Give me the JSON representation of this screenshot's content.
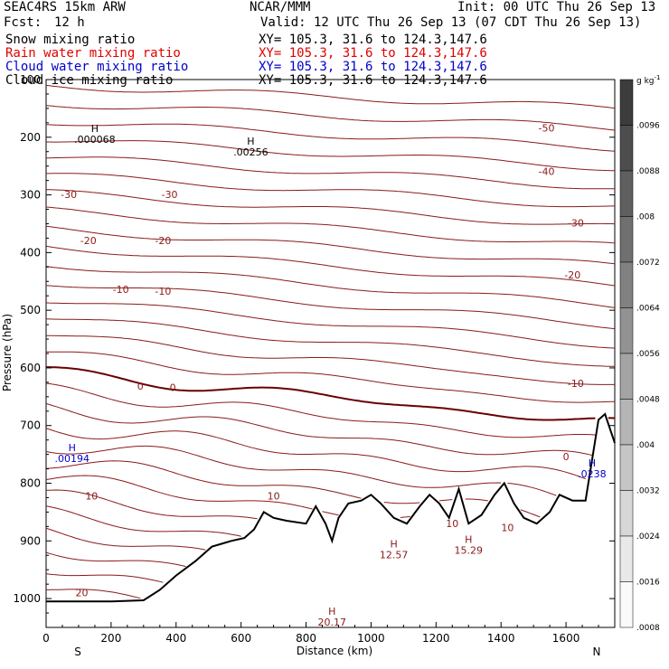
{
  "header": {
    "model": "SEAC4RS 15km ARW",
    "org": "NCAR/MMM",
    "init": "Init: 00 UTC Thu 26 Sep 13",
    "fcst_label": "Fcst:",
    "fcst_value": "12 h",
    "valid": "Valid: 12 UTC Thu 26 Sep 13 (07 CDT Thu 26 Sep 13)"
  },
  "fields": [
    {
      "name": "Snow mixing ratio",
      "xy": "XY= 105.3, 31.6 to 124.3,147.6",
      "color": "#000000"
    },
    {
      "name": "Rain water mixing ratio",
      "xy": "XY= 105.3, 31.6 to 124.3,147.6",
      "color": "#e00000"
    },
    {
      "name": "Cloud water mixing ratio",
      "xy": "XY= 105.3, 31.6 to 124.3,147.6",
      "color": "#0000cc"
    },
    {
      "name": "Cloud ice mixing ratio",
      "xy": "XY= 105.3, 31.6 to 124.3,147.6",
      "color": "#000000"
    }
  ],
  "chart_data": {
    "type": "cross-section contour",
    "xlabel": "Distance (km)",
    "ylabel": "Pressure (hPa)",
    "x_range": [
      0,
      1750
    ],
    "y_range": [
      100,
      1050
    ],
    "x_ticks": [
      0,
      200,
      400,
      600,
      800,
      1000,
      1200,
      1400,
      1600
    ],
    "y_ticks": [
      100,
      200,
      300,
      400,
      500,
      600,
      700,
      800,
      900,
      1000
    ],
    "y_tick_labels": [
      "100",
      "200",
      "300",
      "400",
      "500",
      "600",
      "700",
      "800",
      "900",
      "1000"
    ],
    "endpoints": {
      "left": "S",
      "right": "N"
    },
    "colorbar": {
      "units": "g kg",
      "units_sup": "-1",
      "labels": [
        ".0096",
        ".0088",
        ".008",
        ".0072",
        ".0064",
        ".0056",
        ".0048",
        ".004",
        ".0032",
        ".0024",
        ".0016",
        ".0008"
      ]
    },
    "temperature_contours": [
      {
        "value": -50,
        "color": "#8b1a1a"
      },
      {
        "value": -40,
        "color": "#8b1a1a"
      },
      {
        "value": -30,
        "color": "#8b1a1a"
      },
      {
        "value": -20,
        "color": "#8b1a1a"
      },
      {
        "value": -10,
        "color": "#8b1a1a"
      },
      {
        "value": 0,
        "color": "#7a0000",
        "bold": true
      },
      {
        "value": 10,
        "color": "#8b1a1a"
      },
      {
        "value": 20,
        "color": "#8b1a1a"
      }
    ],
    "contour_labels": [
      {
        "text": "-50",
        "x": 1540,
        "p": 190
      },
      {
        "text": "-40",
        "x": 1540,
        "p": 265
      },
      {
        "text": "-30",
        "x": 70,
        "p": 305
      },
      {
        "text": "-30",
        "x": 380,
        "p": 305
      },
      {
        "text": "-30",
        "x": 1630,
        "p": 355
      },
      {
        "text": "-20",
        "x": 130,
        "p": 385
      },
      {
        "text": "-20",
        "x": 360,
        "p": 385
      },
      {
        "text": "-20",
        "x": 1620,
        "p": 445
      },
      {
        "text": "-10",
        "x": 230,
        "p": 470
      },
      {
        "text": "-10",
        "x": 360,
        "p": 473
      },
      {
        "text": "-10",
        "x": 1630,
        "p": 633
      },
      {
        "text": "0",
        "x": 290,
        "p": 638
      },
      {
        "text": "0",
        "x": 390,
        "p": 640
      },
      {
        "text": "0",
        "x": 1600,
        "p": 760
      },
      {
        "text": "10",
        "x": 140,
        "p": 828
      },
      {
        "text": "10",
        "x": 700,
        "p": 828
      },
      {
        "text": "10",
        "x": 1250,
        "p": 876
      },
      {
        "text": "10",
        "x": 1420,
        "p": 883
      },
      {
        "text": "20",
        "x": 110,
        "p": 996
      }
    ],
    "extrema": [
      {
        "label": "H",
        "value": ".000068",
        "x": 150,
        "p": 210,
        "color": "#000000"
      },
      {
        "label": "H",
        "value": ".00256",
        "x": 630,
        "p": 232,
        "color": "#000000"
      },
      {
        "label": "H",
        "value": ".00194",
        "x": 80,
        "p": 763,
        "color": "#0000cc"
      },
      {
        "label": "H",
        "value": ".0238",
        "x": 1680,
        "p": 790,
        "color": "#0000cc"
      },
      {
        "label": "H",
        "value": "12.57",
        "x": 1070,
        "p": 930,
        "color": "#8b1a1a"
      },
      {
        "label": "H",
        "value": "15.29",
        "x": 1300,
        "p": 922,
        "color": "#8b1a1a"
      },
      {
        "label": "H",
        "value": "20.17",
        "x": 880,
        "p": 1047,
        "color": "#8b1a1a"
      }
    ],
    "terrain": {
      "x": [
        0,
        100,
        200,
        300,
        350,
        400,
        460,
        510,
        540,
        570,
        610,
        640,
        670,
        700,
        740,
        800,
        830,
        860,
        880,
        900,
        930,
        970,
        1000,
        1030,
        1070,
        1110,
        1150,
        1180,
        1210,
        1240,
        1270,
        1300,
        1340,
        1380,
        1410,
        1440,
        1470,
        1510,
        1550,
        1580,
        1620,
        1660,
        1700,
        1720,
        1750
      ],
      "p": [
        1005,
        1005,
        1005,
        1003,
        985,
        960,
        935,
        910,
        905,
        900,
        895,
        880,
        850,
        860,
        865,
        870,
        840,
        870,
        900,
        860,
        835,
        830,
        820,
        835,
        860,
        870,
        840,
        820,
        835,
        860,
        810,
        870,
        855,
        820,
        800,
        835,
        860,
        870,
        850,
        820,
        830,
        830,
        690,
        680,
        730
      ]
    }
  }
}
